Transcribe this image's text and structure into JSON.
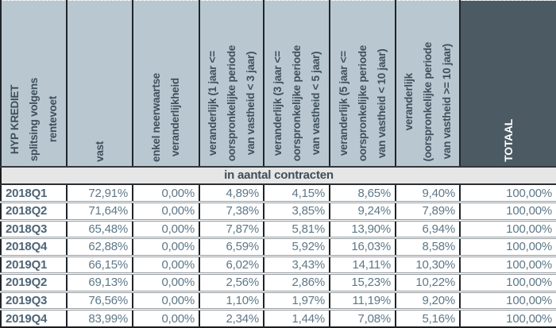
{
  "table": {
    "section_header": "in aantal contracten",
    "columns": [
      {
        "id": "rentevoet",
        "lines": [
          "HYP KREDIET",
          "splitsing volgens",
          "rentevoet"
        ],
        "dark": false
      },
      {
        "id": "vast",
        "lines": [
          "vast"
        ],
        "dark": false
      },
      {
        "id": "enkel-neerwaarts",
        "lines": [
          "enkel neerwaartse",
          "veranderlijkheid"
        ],
        "dark": false
      },
      {
        "id": "veranderlijk-1-3",
        "lines": [
          "veranderlijk (1 jaar <=",
          "oorspronkelijke periode",
          "van vastheid < 3 jaar)"
        ],
        "dark": false
      },
      {
        "id": "veranderlijk-3-5",
        "lines": [
          "veranderlijk (3 jaar <=",
          "oorspronkelijke periode",
          "van vastheid < 5 jaar)"
        ],
        "dark": false
      },
      {
        "id": "veranderlijk-5-10",
        "lines": [
          "veranderlijk (5 jaar <=",
          "oorspronkelijke periode",
          "van vastheid < 10 jaar)"
        ],
        "dark": false
      },
      {
        "id": "veranderlijk-10plus",
        "lines": [
          "veranderlijk",
          "(oorspronkelijke periode",
          "van vastheid >= 10 jaar)"
        ],
        "dark": false
      },
      {
        "id": "totaal",
        "lines": [
          "TOTAAL"
        ],
        "dark": true
      }
    ],
    "rows": [
      {
        "label": "2018Q1",
        "values": [
          "72,91%",
          "0,00%",
          "4,89%",
          "4,15%",
          "8,65%",
          "9,40%",
          "100,00%"
        ]
      },
      {
        "label": "2018Q2",
        "values": [
          "71,64%",
          "0,00%",
          "7,38%",
          "3,85%",
          "9,24%",
          "7,89%",
          "100,00%"
        ]
      },
      {
        "label": "2018Q3",
        "values": [
          "65,48%",
          "0,00%",
          "7,87%",
          "5,81%",
          "13,90%",
          "6,94%",
          "100,00%"
        ]
      },
      {
        "label": "2018Q4",
        "values": [
          "62,88%",
          "0,00%",
          "6,59%",
          "5,92%",
          "16,03%",
          "8,58%",
          "100,00%"
        ]
      },
      {
        "label": "2019Q1",
        "values": [
          "66,15%",
          "0,00%",
          "6,02%",
          "3,43%",
          "14,11%",
          "10,30%",
          "100,00%"
        ]
      },
      {
        "label": "2019Q2",
        "values": [
          "69,13%",
          "0,00%",
          "2,56%",
          "2,86%",
          "15,23%",
          "10,22%",
          "100,00%"
        ]
      },
      {
        "label": "2019Q3",
        "values": [
          "76,56%",
          "0,00%",
          "1,10%",
          "1,97%",
          "11,19%",
          "9,20%",
          "100,00%"
        ]
      },
      {
        "label": "2019Q4",
        "values": [
          "83,99%",
          "0,00%",
          "2,34%",
          "1,44%",
          "7,08%",
          "5,16%",
          "100,00%"
        ]
      }
    ]
  },
  "colors": {
    "header_bg": "#b9c8d0",
    "totaal_bg": "#4c5a64",
    "header_text": "#3f505c",
    "totaal_text": "#ffffff",
    "band_bg": "#e6e6e6",
    "band_text": "#3f4e59",
    "value_text": "#5d7888",
    "row_label_text": "#4e6577",
    "vertical_border": "#202428",
    "row_separator": "#969ca1"
  },
  "chart_data": {
    "type": "table",
    "title": "HYP KREDIET splitsing volgens rentevoet",
    "subtitle": "in aantal contracten",
    "unit": "%",
    "categories": [
      "2018Q1",
      "2018Q2",
      "2018Q3",
      "2018Q4",
      "2019Q1",
      "2019Q2",
      "2019Q3",
      "2019Q4"
    ],
    "series": [
      {
        "name": "vast",
        "values": [
          72.91,
          71.64,
          65.48,
          62.88,
          66.15,
          69.13,
          76.56,
          83.99
        ]
      },
      {
        "name": "enkel neerwaartse veranderlijkheid",
        "values": [
          0.0,
          0.0,
          0.0,
          0.0,
          0.0,
          0.0,
          0.0,
          0.0
        ]
      },
      {
        "name": "veranderlijk (1 jaar <= oorspronkelijke periode van vastheid < 3 jaar)",
        "values": [
          4.89,
          7.38,
          7.87,
          6.59,
          6.02,
          2.56,
          1.1,
          2.34
        ]
      },
      {
        "name": "veranderlijk (3 jaar <= oorspronkelijke periode van vastheid < 5 jaar)",
        "values": [
          4.15,
          3.85,
          5.81,
          5.92,
          3.43,
          2.86,
          1.97,
          1.44
        ]
      },
      {
        "name": "veranderlijk (5 jaar <= oorspronkelijke periode van vastheid < 10 jaar)",
        "values": [
          8.65,
          9.24,
          13.9,
          16.03,
          14.11,
          15.23,
          11.19,
          7.08
        ]
      },
      {
        "name": "veranderlijk (oorspronkelijke periode van vastheid >= 10 jaar)",
        "values": [
          9.4,
          7.89,
          6.94,
          8.58,
          10.3,
          10.22,
          9.2,
          5.16
        ]
      },
      {
        "name": "TOTAAL",
        "values": [
          100.0,
          100.0,
          100.0,
          100.0,
          100.0,
          100.0,
          100.0,
          100.0
        ]
      }
    ]
  }
}
